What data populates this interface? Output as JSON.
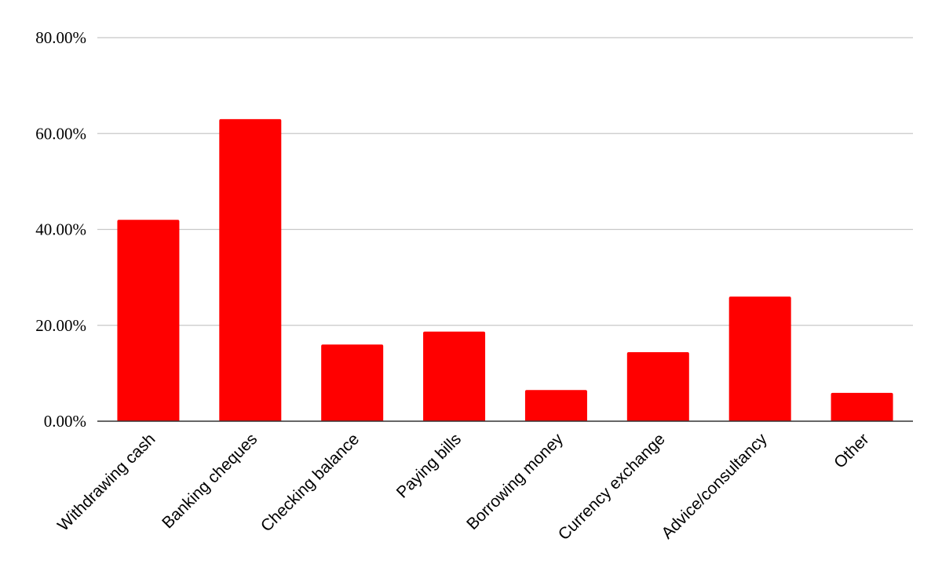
{
  "chart_data": {
    "type": "bar",
    "title": "",
    "xlabel": "",
    "ylabel": "",
    "categories": [
      "Withdrawing cash",
      "Banking cheques",
      "Checking balance",
      "Paying bills",
      "Borrowing money",
      "Currency exchange",
      "Advice/consultancy",
      "Other"
    ],
    "values": [
      42.0,
      63.0,
      16.0,
      18.7,
      6.5,
      14.4,
      26.0,
      5.9
    ],
    "ylim": [
      0,
      80
    ],
    "yticks": [
      0,
      20,
      40,
      60,
      80
    ],
    "ytick_labels": [
      "0.00%",
      "20.00%",
      "40.00%",
      "60.00%",
      "80.00%"
    ],
    "value_format": "percent",
    "grid": true,
    "legend": "none",
    "colors": {
      "bar": "#ff0000",
      "grid": "#c8c8c8",
      "axis": "#333333",
      "background": "#ffffff"
    }
  }
}
